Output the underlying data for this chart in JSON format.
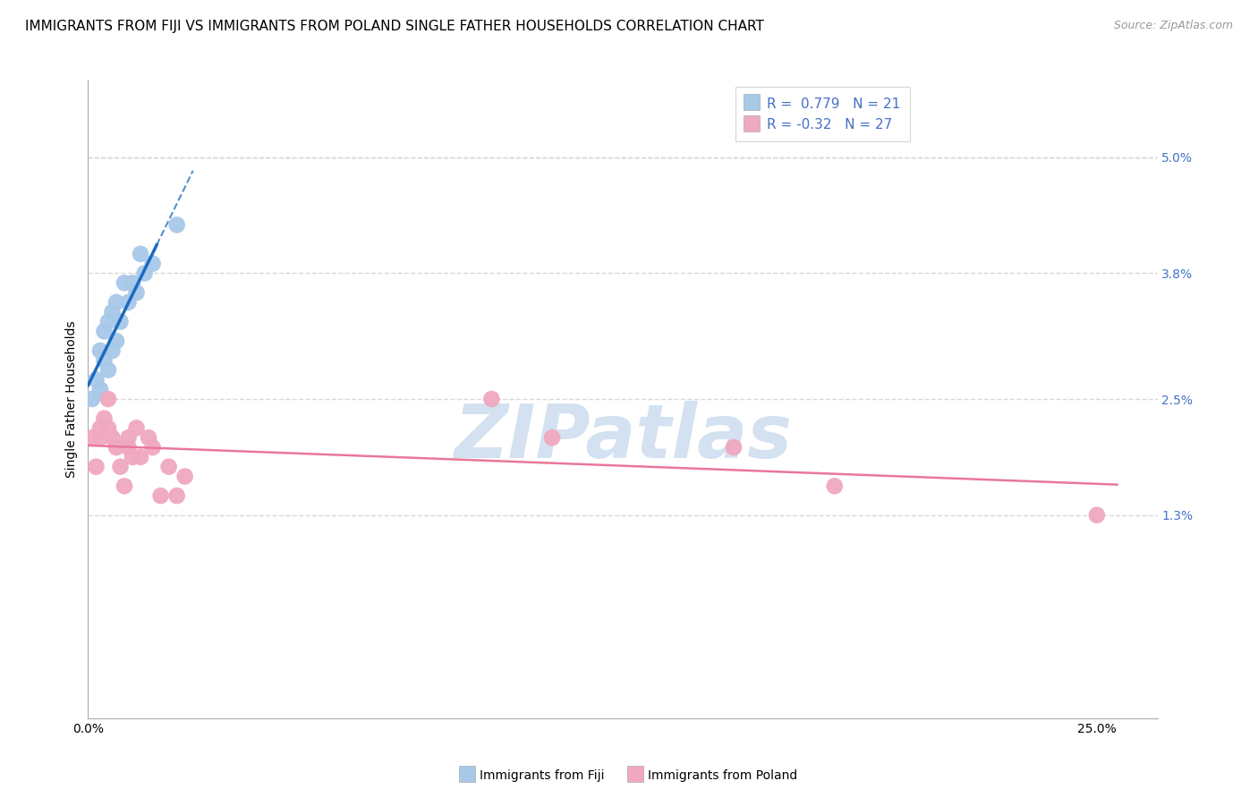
{
  "title": "IMMIGRANTS FROM FIJI VS IMMIGRANTS FROM POLAND SINGLE FATHER HOUSEHOLDS CORRELATION CHART",
  "source": "Source: ZipAtlas.com",
  "ylabel_label": "Single Father Households",
  "xlim": [
    0.0,
    0.265
  ],
  "ylim": [
    -0.008,
    0.058
  ],
  "fiji_R": 0.779,
  "fiji_N": 21,
  "poland_R": -0.32,
  "poland_N": 27,
  "fiji_color": "#a8c8e8",
  "poland_color": "#f0a8c0",
  "fiji_line_color": "#1a6abf",
  "poland_line_color": "#e87898",
  "fiji_x": [
    0.001,
    0.002,
    0.003,
    0.003,
    0.004,
    0.004,
    0.005,
    0.005,
    0.006,
    0.006,
    0.007,
    0.007,
    0.008,
    0.009,
    0.01,
    0.011,
    0.012,
    0.013,
    0.014,
    0.016,
    0.022
  ],
  "fiji_y": [
    0.025,
    0.027,
    0.026,
    0.03,
    0.029,
    0.032,
    0.028,
    0.033,
    0.03,
    0.034,
    0.031,
    0.035,
    0.033,
    0.037,
    0.035,
    0.037,
    0.036,
    0.04,
    0.038,
    0.039,
    0.043
  ],
  "poland_x": [
    0.001,
    0.002,
    0.003,
    0.003,
    0.004,
    0.005,
    0.005,
    0.006,
    0.007,
    0.008,
    0.009,
    0.01,
    0.01,
    0.011,
    0.012,
    0.013,
    0.015,
    0.016,
    0.018,
    0.02,
    0.022,
    0.024,
    0.1,
    0.115,
    0.16,
    0.185,
    0.25
  ],
  "poland_y": [
    0.021,
    0.018,
    0.022,
    0.021,
    0.023,
    0.022,
    0.025,
    0.021,
    0.02,
    0.018,
    0.016,
    0.021,
    0.02,
    0.019,
    0.022,
    0.019,
    0.021,
    0.02,
    0.015,
    0.018,
    0.015,
    0.017,
    0.025,
    0.021,
    0.02,
    0.016,
    0.013
  ],
  "y_ticks": [
    0.013,
    0.025,
    0.038,
    0.05
  ],
  "y_tick_labels": [
    "1.3%",
    "2.5%",
    "3.8%",
    "5.0%"
  ],
  "x_tick_positions": [
    0.0,
    0.05,
    0.1,
    0.15,
    0.2,
    0.25
  ],
  "x_tick_labels": [
    "0.0%",
    "",
    "",
    "",
    "",
    "25.0%"
  ],
  "grid_color": "#d8d8d8",
  "grid_linestyle": "--",
  "background_color": "#ffffff",
  "watermark_color": "#ccdcee",
  "title_fontsize": 11,
  "axis_label_fontsize": 10,
  "tick_fontsize": 10,
  "legend_fontsize": 11,
  "scatter_size": 180,
  "fiji_line_solid_end": 0.017,
  "fiji_line_dash_end": 0.026
}
